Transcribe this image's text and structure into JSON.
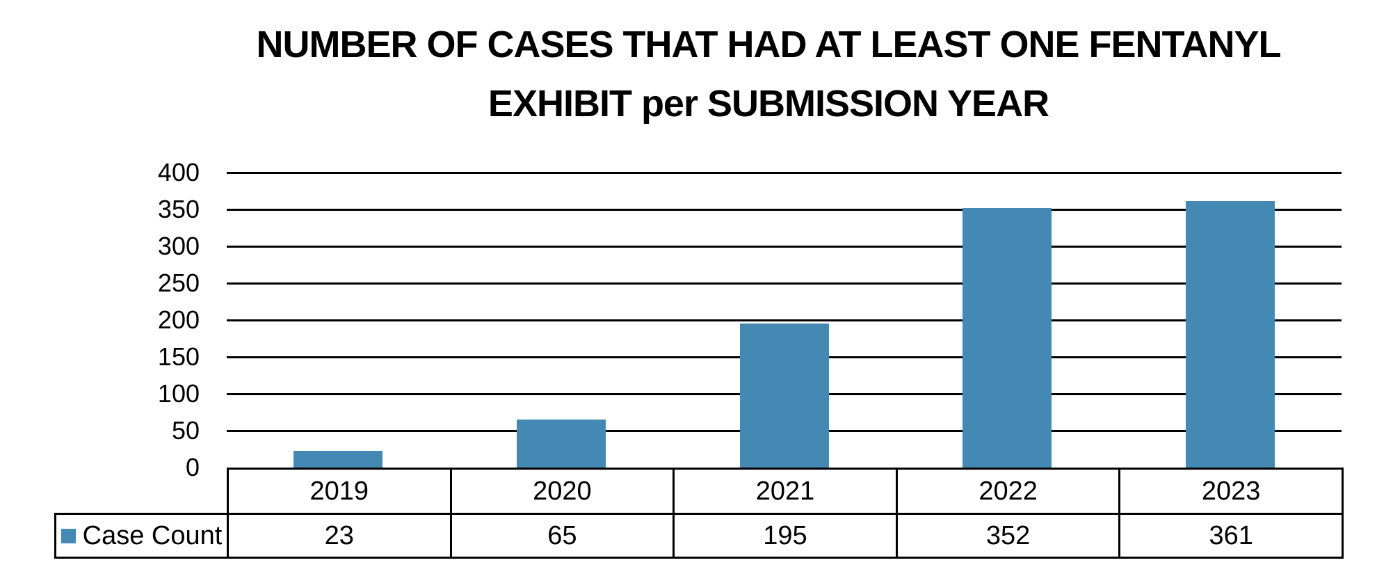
{
  "title": {
    "full": "NUMBER OF CASES THAT HAD AT LEAST ONE FENTANYL EXHIBIT per SUBMISSION YEAR",
    "line1": "NUMBER OF CASES THAT HAD AT LEAST ONE FENTANYL",
    "line2": "EXHIBIT per SUBMISSION YEAR"
  },
  "chart_data": {
    "type": "bar",
    "title": "NUMBER OF CASES THAT HAD AT LEAST ONE FENTANYL EXHIBIT per SUBMISSION YEAR",
    "categories": [
      "2019",
      "2020",
      "2021",
      "2022",
      "2023"
    ],
    "series": [
      {
        "name": "Case Count",
        "values": [
          23,
          65,
          195,
          352,
          361
        ]
      }
    ],
    "xlabel": "",
    "ylabel": "",
    "ylim": [
      0,
      400
    ],
    "y_ticks": [
      0,
      50,
      100,
      150,
      200,
      250,
      300,
      350,
      400
    ],
    "grid": "horizontal-black",
    "legend_position": "bottom-left-of-data-table",
    "data_table_shown": true
  },
  "colors": {
    "bar": "#4389B4",
    "gridline": "#000000",
    "table_border": "#000000",
    "text": "#000000",
    "background": "#FFFFFF"
  }
}
